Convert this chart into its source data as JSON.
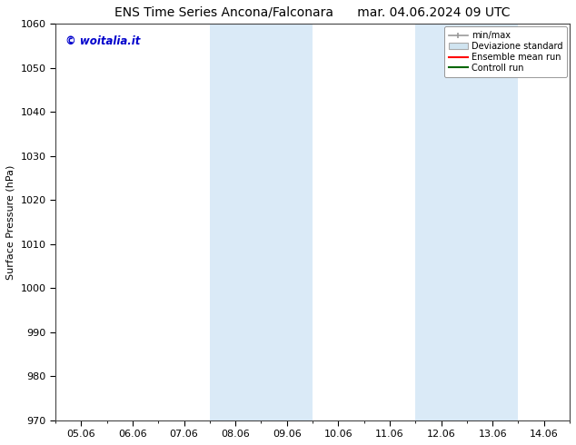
{
  "title_left": "ENS Time Series Ancona/Falconara",
  "title_right": "mar. 04.06.2024 09 UTC",
  "ylabel": "Surface Pressure (hPa)",
  "ylim": [
    970,
    1060
  ],
  "yticks": [
    970,
    980,
    990,
    1000,
    1010,
    1020,
    1030,
    1040,
    1050,
    1060
  ],
  "xlim_dates": [
    "05.06",
    "06.06",
    "07.06",
    "08.06",
    "09.06",
    "10.06",
    "11.06",
    "12.06",
    "13.06",
    "14.06"
  ],
  "shaded_regions": [
    {
      "xmin": 2.5,
      "xmax": 3.0
    },
    {
      "xmin": 3.5,
      "xmax": 4.0
    },
    {
      "xmin": 6.5,
      "xmax": 7.0
    },
    {
      "xmin": 7.5,
      "xmax": 8.5
    }
  ],
  "shaded_color": "#daeaf7",
  "watermark_text": "© woitalia.it",
  "watermark_color": "#0000cc",
  "legend_labels": [
    "min/max",
    "Deviazione standard",
    "Ensemble mean run",
    "Controll run"
  ],
  "legend_colors": [
    "#999999",
    "#c8dcea",
    "#ff0000",
    "#006600"
  ],
  "background_color": "#ffffff",
  "title_fontsize": 10,
  "axis_fontsize": 8
}
